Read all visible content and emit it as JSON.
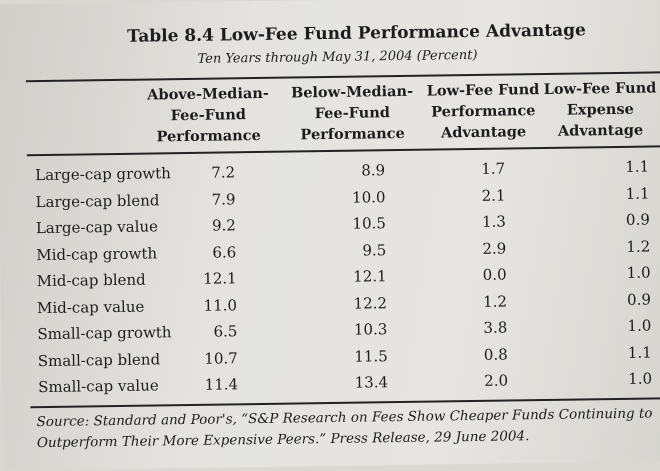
{
  "title": "Table 8.4  Low-Fee Fund Performance Advantage",
  "subtitle": "Ten Years through May 31, 2004 (Percent)",
  "columns": [
    "Above-Median-\nFee-Fund\nPerformance",
    "Below-Median-\nFee-Fund\nPerformance",
    "Low-Fee Fund\nPerformance\nAdvantage",
    "Low-Fee Fund\nExpense\nAdvantage"
  ],
  "rows": [
    {
      "label": "Large-cap growth",
      "above": "7.2",
      "below": "8.9",
      "perf_adv": "1.7",
      "exp_adv": "1.1"
    },
    {
      "label": "Large-cap blend",
      "above": "7.9",
      "below": "10.0",
      "perf_adv": "2.1",
      "exp_adv": "1.1"
    },
    {
      "label": "Large-cap value",
      "above": "9.2",
      "below": "10.5",
      "perf_adv": "1.3",
      "exp_adv": "0.9"
    },
    {
      "label": "Mid-cap growth",
      "above": "6.6",
      "below": "9.5",
      "perf_adv": "2.9",
      "exp_adv": "1.2"
    },
    {
      "label": "Mid-cap blend",
      "above": "12.1",
      "below": "12.1",
      "perf_adv": "0.0",
      "exp_adv": "1.0"
    },
    {
      "label": "Mid-cap value",
      "above": "11.0",
      "below": "12.2",
      "perf_adv": "1.2",
      "exp_adv": "0.9"
    },
    {
      "label": "Small-cap growth",
      "above": "6.5",
      "below": "10.3",
      "perf_adv": "3.8",
      "exp_adv": "1.0"
    },
    {
      "label": "Small-cap blend",
      "above": "10.7",
      "below": "11.5",
      "perf_adv": "0.8",
      "exp_adv": "1.1"
    },
    {
      "label": "Small-cap value",
      "above": "11.4",
      "below": "13.4",
      "perf_adv": "2.0",
      "exp_adv": "1.0"
    }
  ],
  "source": "Source: Standard and Poor's, “S&P Research on Fees Show Cheaper Funds Continuing to Outperform Their More Expensive Peers.” Press Release, 29 June 2004."
}
